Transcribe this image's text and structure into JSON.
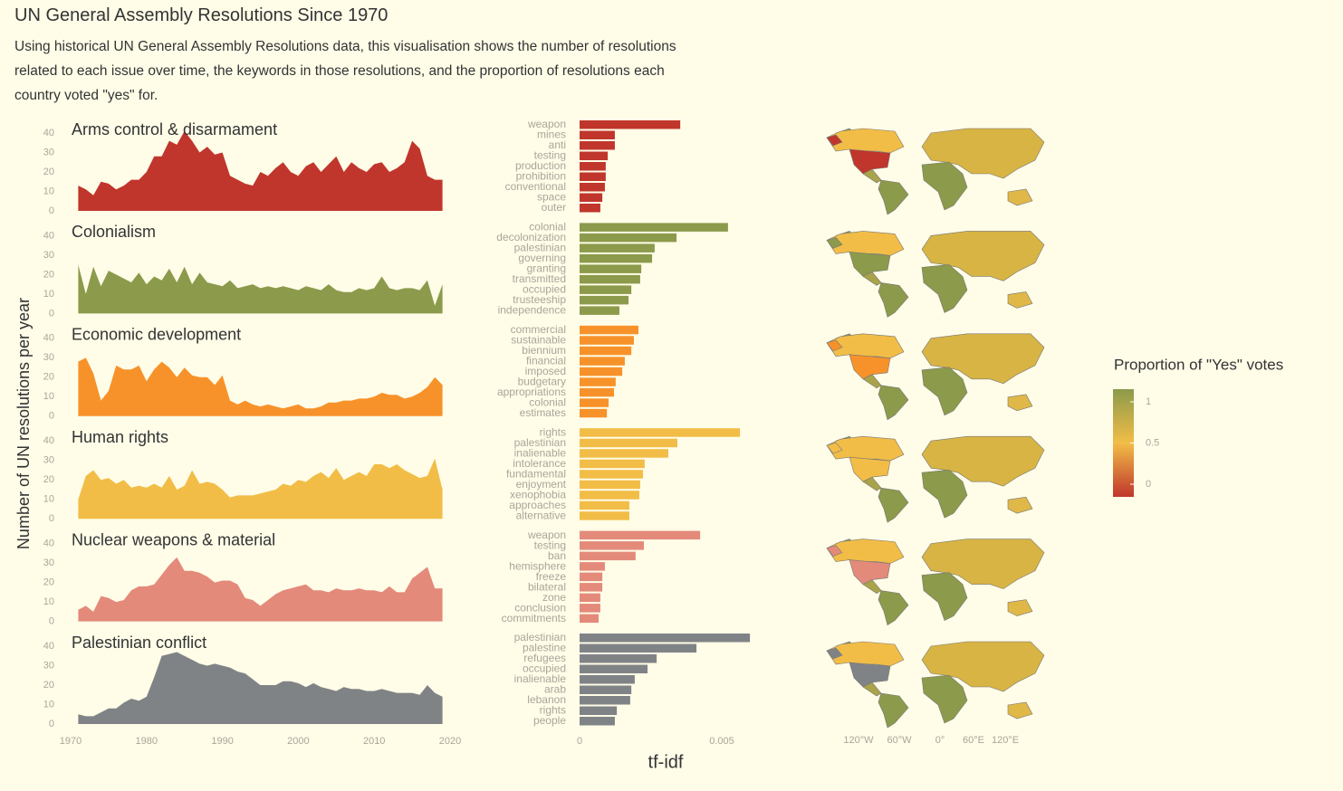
{
  "title": "UN General Assembly Resolutions Since 1970",
  "subtitle": "Using historical UN General Assembly Resolutions data, this visualisation shows the number of resolutions related to each issue over time, the keywords in those resolutions, and the proportion of resolutions each country voted \"yes\" for.",
  "y_label": "Number of UN resolutions per year",
  "x_label": "tf-idf",
  "area_axis": {
    "xlim": [
      1970,
      2020
    ],
    "xticks": [
      1970,
      1980,
      1990,
      2000,
      2010,
      2020
    ],
    "ylim": [
      0,
      44
    ],
    "yticks": [
      0,
      10,
      20,
      30,
      40
    ]
  },
  "bar_axis": {
    "xlim": [
      0,
      0.006
    ],
    "xticks": [
      0,
      0.005
    ]
  },
  "legend": {
    "title": "Proportion of \"Yes\" votes",
    "ticks": [
      0,
      0.5,
      1
    ],
    "ylim": [
      0,
      1
    ],
    "colors": [
      "#c0362c",
      "#f2bd47",
      "#8c9a4b"
    ]
  },
  "map_ticks": [
    "120°W",
    "60°W",
    "0°",
    "60°E",
    "120°E"
  ],
  "chart_data": [
    {
      "type": "area",
      "title": "Arms control & disarmament",
      "color": "#c0362c",
      "x": [
        1971,
        1972,
        1973,
        1974,
        1975,
        1976,
        1977,
        1978,
        1979,
        1980,
        1981,
        1982,
        1983,
        1984,
        1985,
        1986,
        1987,
        1988,
        1989,
        1990,
        1991,
        1992,
        1993,
        1994,
        1995,
        1996,
        1997,
        1998,
        1999,
        2000,
        2001,
        2002,
        2003,
        2004,
        2005,
        2006,
        2007,
        2008,
        2009,
        2010,
        2011,
        2012,
        2013,
        2014,
        2015,
        2016,
        2017,
        2018,
        2019
      ],
      "values": [
        13,
        11,
        8,
        15,
        14,
        11,
        13,
        16,
        16,
        20,
        28,
        28,
        36,
        34,
        41,
        36,
        30,
        33,
        29,
        30,
        18,
        16,
        14,
        13,
        20,
        18,
        22,
        25,
        20,
        18,
        23,
        25,
        20,
        24,
        28,
        20,
        25,
        22,
        20,
        24,
        25,
        20,
        22,
        25,
        36,
        32,
        18,
        16,
        16
      ]
    },
    {
      "type": "area",
      "title": "Colonialism",
      "color": "#8c9a4b",
      "x": [
        1971,
        1972,
        1973,
        1974,
        1975,
        1976,
        1977,
        1978,
        1979,
        1980,
        1981,
        1982,
        1983,
        1984,
        1985,
        1986,
        1987,
        1988,
        1989,
        1990,
        1991,
        1992,
        1993,
        1994,
        1995,
        1996,
        1997,
        1998,
        1999,
        2000,
        2001,
        2002,
        2003,
        2004,
        2005,
        2006,
        2007,
        2008,
        2009,
        2010,
        2011,
        2012,
        2013,
        2014,
        2015,
        2016,
        2017,
        2018,
        2019
      ],
      "values": [
        25,
        10,
        24,
        14,
        22,
        20,
        18,
        16,
        21,
        15,
        19,
        17,
        23,
        16,
        24,
        15,
        21,
        16,
        15,
        14,
        17,
        13,
        14,
        15,
        13,
        14,
        13,
        14,
        13,
        12,
        14,
        13,
        12,
        15,
        12,
        11,
        11,
        13,
        12,
        13,
        19,
        13,
        12,
        13,
        13,
        12,
        17,
        4,
        15
      ]
    },
    {
      "type": "area",
      "title": "Economic development",
      "color": "#f7922a",
      "x": [
        1971,
        1972,
        1973,
        1974,
        1975,
        1976,
        1977,
        1978,
        1979,
        1980,
        1981,
        1982,
        1983,
        1984,
        1985,
        1986,
        1987,
        1988,
        1989,
        1990,
        1991,
        1992,
        1993,
        1994,
        1995,
        1996,
        1997,
        1998,
        1999,
        2000,
        2001,
        2002,
        2003,
        2004,
        2005,
        2006,
        2007,
        2008,
        2009,
        2010,
        2011,
        2012,
        2013,
        2014,
        2015,
        2016,
        2017,
        2018,
        2019
      ],
      "values": [
        28,
        30,
        22,
        8,
        13,
        26,
        24,
        24,
        26,
        18,
        24,
        28,
        25,
        20,
        25,
        21,
        20,
        20,
        16,
        21,
        8,
        6,
        8,
        6,
        5,
        6,
        5,
        4,
        5,
        6,
        4,
        4,
        5,
        7,
        7,
        8,
        8,
        9,
        9,
        10,
        12,
        11,
        11,
        9,
        10,
        12,
        15,
        20,
        16
      ]
    },
    {
      "type": "area",
      "title": "Human rights",
      "color": "#f2bd47",
      "x": [
        1971,
        1972,
        1973,
        1974,
        1975,
        1976,
        1977,
        1978,
        1979,
        1980,
        1981,
        1982,
        1983,
        1984,
        1985,
        1986,
        1987,
        1988,
        1989,
        1990,
        1991,
        1992,
        1993,
        1994,
        1995,
        1996,
        1997,
        1998,
        1999,
        2000,
        2001,
        2002,
        2003,
        2004,
        2005,
        2006,
        2007,
        2008,
        2009,
        2010,
        2011,
        2012,
        2013,
        2014,
        2015,
        2016,
        2017,
        2018,
        2019
      ],
      "values": [
        10,
        22,
        25,
        20,
        21,
        18,
        20,
        16,
        17,
        16,
        18,
        16,
        22,
        15,
        17,
        25,
        18,
        19,
        18,
        15,
        11,
        12,
        12,
        12,
        13,
        14,
        15,
        18,
        17,
        20,
        19,
        22,
        24,
        21,
        26,
        20,
        22,
        24,
        22,
        28,
        28,
        26,
        28,
        25,
        23,
        21,
        22,
        31,
        15
      ]
    },
    {
      "type": "area",
      "title": "Nuclear weapons & material",
      "color": "#e48a7b",
      "x": [
        1971,
        1972,
        1973,
        1974,
        1975,
        1976,
        1977,
        1978,
        1979,
        1980,
        1981,
        1982,
        1983,
        1984,
        1985,
        1986,
        1987,
        1988,
        1989,
        1990,
        1991,
        1992,
        1993,
        1994,
        1995,
        1996,
        1997,
        1998,
        1999,
        2000,
        2001,
        2002,
        2003,
        2004,
        2005,
        2006,
        2007,
        2008,
        2009,
        2010,
        2011,
        2012,
        2013,
        2014,
        2015,
        2016,
        2017,
        2018,
        2019
      ],
      "values": [
        6,
        8,
        5,
        13,
        12,
        10,
        11,
        16,
        18,
        18,
        19,
        24,
        29,
        33,
        26,
        26,
        25,
        23,
        20,
        21,
        21,
        19,
        12,
        11,
        8,
        11,
        14,
        16,
        17,
        18,
        19,
        16,
        16,
        15,
        17,
        16,
        16,
        17,
        16,
        16,
        15,
        18,
        15,
        15,
        22,
        25,
        28,
        17,
        17
      ]
    },
    {
      "type": "area",
      "title": "Palestinian conflict",
      "color": "#808386",
      "x": [
        1971,
        1972,
        1973,
        1974,
        1975,
        1976,
        1977,
        1978,
        1979,
        1980,
        1981,
        1982,
        1983,
        1984,
        1985,
        1986,
        1987,
        1988,
        1989,
        1990,
        1991,
        1992,
        1993,
        1994,
        1995,
        1996,
        1997,
        1998,
        1999,
        2000,
        2001,
        2002,
        2003,
        2004,
        2005,
        2006,
        2007,
        2008,
        2009,
        2010,
        2011,
        2012,
        2013,
        2014,
        2015,
        2016,
        2017,
        2018,
        2019
      ],
      "values": [
        5,
        4,
        4,
        6,
        8,
        8,
        11,
        13,
        12,
        14,
        24,
        35,
        36,
        37,
        35,
        33,
        31,
        30,
        31,
        30,
        29,
        27,
        26,
        23,
        20,
        20,
        20,
        22,
        22,
        21,
        19,
        21,
        19,
        18,
        17,
        19,
        18,
        18,
        17,
        17,
        18,
        17,
        16,
        16,
        16,
        15,
        20,
        16,
        14
      ]
    },
    {
      "type": "bar",
      "color": "#c0362c",
      "categories": [
        "weapon",
        "mines",
        "anti",
        "testing",
        "production",
        "prohibition",
        "conventional",
        "space",
        "outer"
      ],
      "values": [
        0.00354,
        0.00124,
        0.00124,
        0.00099,
        0.00092,
        0.00092,
        0.00089,
        0.0008,
        0.00073
      ]
    },
    {
      "type": "bar",
      "color": "#8c9a4b",
      "categories": [
        "colonial",
        "decolonization",
        "palestinian",
        "governing",
        "granting",
        "transmitted",
        "occupied",
        "trusteeship",
        "independence"
      ],
      "values": [
        0.00522,
        0.00341,
        0.00264,
        0.00255,
        0.00217,
        0.00213,
        0.00182,
        0.00172,
        0.0014
      ]
    },
    {
      "type": "bar",
      "color": "#f7922a",
      "categories": [
        "commercial",
        "sustainable",
        "biennium",
        "financial",
        "imposed",
        "budgetary",
        "appropriations",
        "colonial",
        "estimates"
      ],
      "values": [
        0.00207,
        0.00191,
        0.00182,
        0.00159,
        0.0015,
        0.00127,
        0.00121,
        0.00102,
        0.00096
      ]
    },
    {
      "type": "bar",
      "color": "#f2bd47",
      "categories": [
        "rights",
        "palestinian",
        "inalienable",
        "intolerance",
        "fundamental",
        "enjoyment",
        "xenophobia",
        "approaches",
        "alternative"
      ],
      "values": [
        0.00564,
        0.00344,
        0.00312,
        0.00229,
        0.00223,
        0.00213,
        0.0021,
        0.00175,
        0.00175
      ]
    },
    {
      "type": "bar",
      "color": "#e48a7b",
      "categories": [
        "weapon",
        "testing",
        "ban",
        "hemisphere",
        "freeze",
        "bilateral",
        "zone",
        "conclusion",
        "commitments"
      ],
      "values": [
        0.00424,
        0.00226,
        0.00197,
        0.00089,
        0.0008,
        0.0008,
        0.00073,
        0.00073,
        0.00067
      ]
    },
    {
      "type": "bar",
      "color": "#808386",
      "categories": [
        "palestinian",
        "palestine",
        "refugees",
        "occupied",
        "inalienable",
        "arab",
        "lebanon",
        "rights",
        "people"
      ],
      "values": [
        0.00599,
        0.00411,
        0.00271,
        0.00239,
        0.00194,
        0.00182,
        0.00178,
        0.00131,
        0.00124
      ]
    }
  ]
}
